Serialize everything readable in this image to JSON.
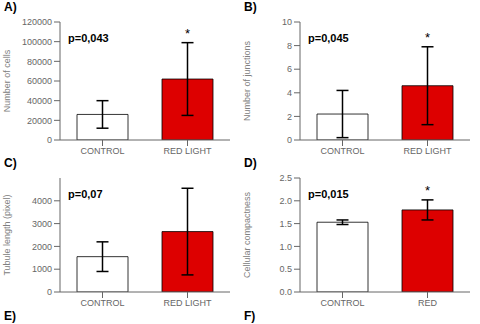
{
  "chart_data": [
    {
      "type": "bar",
      "title": "A)",
      "ylabel": "Number of cells",
      "annotations": [
        {
          "text": "p=0,043"
        },
        {
          "text": "*",
          "category": "RED LIGHT"
        }
      ],
      "categories": [
        "CONTROL",
        "RED LIGHT"
      ],
      "values": [
        26000,
        62000
      ],
      "errors": [
        14000,
        37000
      ],
      "colors": [
        "#ffffff",
        "#dd0000"
      ],
      "ylim": [
        0,
        120000
      ],
      "yticks": [
        0,
        20000,
        40000,
        60000,
        80000,
        100000,
        120000
      ]
    },
    {
      "type": "bar",
      "title": "B)",
      "ylabel": "Number of junctions",
      "annotations": [
        {
          "text": "p=0,045"
        },
        {
          "text": "*",
          "category": "RED LIGHT"
        }
      ],
      "categories": [
        "CONTROL",
        "RED LIGHT"
      ],
      "values": [
        2.2,
        4.6
      ],
      "errors": [
        2.0,
        3.3
      ],
      "colors": [
        "#ffffff",
        "#dd0000"
      ],
      "ylim": [
        0,
        10
      ],
      "yticks": [
        0,
        2,
        4,
        6,
        8,
        10
      ]
    },
    {
      "type": "bar",
      "title": "C)",
      "ylabel": "Tubule length (pixel)",
      "xlabel": "E)",
      "annotations": [
        {
          "text": "p=0,07"
        }
      ],
      "categories": [
        "CONTROL",
        "RED LIGHT"
      ],
      "values": [
        1550,
        2650
      ],
      "errors": [
        650,
        1900
      ],
      "colors": [
        "#ffffff",
        "#dd0000"
      ],
      "ylim": [
        0,
        5000
      ],
      "yticks": [
        0,
        1000,
        2000,
        3000,
        4000
      ]
    },
    {
      "type": "bar",
      "title": "D)",
      "ylabel": "Cellular compactness",
      "xlabel": "F)",
      "annotations": [
        {
          "text": "p=0,015"
        },
        {
          "text": "*",
          "category": "RED"
        }
      ],
      "categories": [
        "CONTROL",
        "RED"
      ],
      "values": [
        1.53,
        1.8
      ],
      "errors": [
        0.05,
        0.22
      ],
      "colors": [
        "#ffffff",
        "#dd0000"
      ],
      "ylim": [
        0.0,
        2.5
      ],
      "yticks": [
        {
          "value": 0,
          "label": "0.0"
        },
        0.5,
        {
          "value": 1,
          "label": "1.0"
        },
        1.5,
        {
          "value": 2,
          "label": "2.0"
        },
        2.5
      ]
    }
  ]
}
